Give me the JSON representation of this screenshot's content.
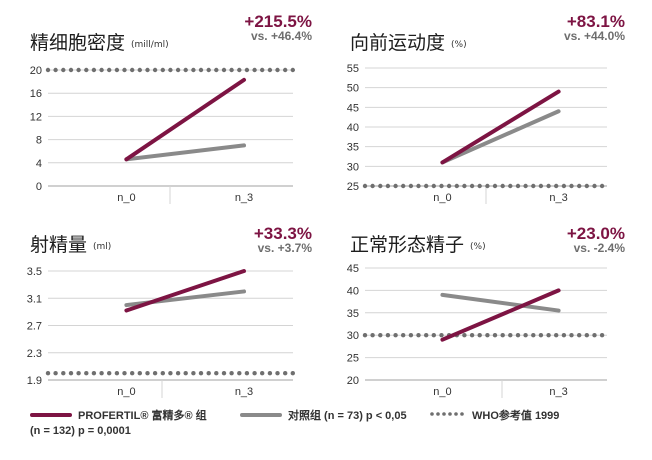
{
  "colors": {
    "profertil": "#7d1443",
    "control": "#8a8a8a",
    "who": "#6f6f6f",
    "grid": "#d4d4d4",
    "axis": "#a0a0a0",
    "tick_text": "#333333"
  },
  "chart_data": [
    {
      "type": "line",
      "title": "精细胞密度",
      "unit": "(mill/ml)",
      "change": "+215.5%",
      "vs": "vs. +46.4%",
      "categories": [
        "n_0",
        "n_3"
      ],
      "yticks": [
        "0",
        "4",
        "8",
        "12",
        "16",
        "20"
      ],
      "ylim": [
        0,
        20
      ],
      "series": [
        {
          "key": "profertil",
          "values": [
            4.6,
            18.3
          ]
        },
        {
          "key": "control",
          "values": [
            4.6,
            7.0
          ]
        },
        {
          "key": "who",
          "values": [
            20,
            20
          ]
        }
      ]
    },
    {
      "type": "line",
      "title": "向前运动度",
      "unit": "(%)",
      "change": "+83.1%",
      "vs": "vs. +44.0%",
      "categories": [
        "n_0",
        "n_3"
      ],
      "yticks": [
        "25",
        "30",
        "35",
        "40",
        "45",
        "50",
        "55"
      ],
      "ylim": [
        25,
        55
      ],
      "series": [
        {
          "key": "profertil",
          "values": [
            31,
            49
          ]
        },
        {
          "key": "control",
          "values": [
            31,
            44
          ]
        },
        {
          "key": "who",
          "values": [
            25,
            25
          ]
        }
      ]
    },
    {
      "type": "line",
      "title": "射精量",
      "unit": "(ml)",
      "change": "+33.3%",
      "vs": "vs. +3.7%",
      "categories": [
        "n_0",
        "n_3"
      ],
      "yticks": [
        "1.9",
        "2.3",
        "2.7",
        "3.1",
        "3.5"
      ],
      "ylim": [
        1.9,
        3.5
      ],
      "series": [
        {
          "key": "profertil",
          "values": [
            2.92,
            3.5
          ]
        },
        {
          "key": "control",
          "values": [
            3.0,
            3.2
          ]
        },
        {
          "key": "who",
          "values": [
            2.0,
            2.0
          ]
        }
      ]
    },
    {
      "type": "line",
      "title": "正常形态精子",
      "unit": "(%)",
      "change": "+23.0%",
      "vs": "vs. -2.4%",
      "categories": [
        "n_0",
        "n_3"
      ],
      "yticks": [
        "20",
        "25",
        "30",
        "35",
        "40",
        "45"
      ],
      "ylim": [
        20,
        45
      ],
      "series": [
        {
          "key": "profertil",
          "values": [
            29,
            40
          ]
        },
        {
          "key": "control",
          "values": [
            39,
            35.5
          ]
        },
        {
          "key": "who",
          "values": [
            30,
            30
          ]
        }
      ]
    }
  ],
  "legend": {
    "profertil_label": "PROFERTIL® 富精多® 组",
    "profertil_sub": "(n = 132) p = 0,0001",
    "control_label": "对照组 (n = 73)  p < 0,05",
    "who_label": "WHO参考值 1999"
  }
}
